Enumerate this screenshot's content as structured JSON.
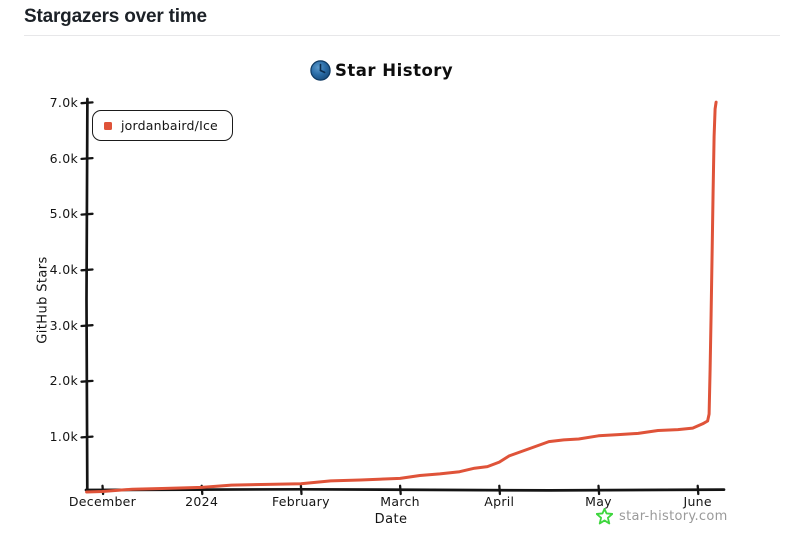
{
  "page": {
    "title": "Stargazers over time"
  },
  "chart": {
    "brand": {
      "title": "Star History",
      "icon": "star-history-logo-icon",
      "icon_color": "#1d5d97"
    },
    "legend": {
      "items": [
        {
          "label": "jordanbaird/Ice",
          "color": "#df5339"
        }
      ]
    },
    "watermark": {
      "text": "star-history.com",
      "icon": "green-star-icon",
      "icon_color": "#3ed63e",
      "text_color": "#9a9a9a"
    }
  },
  "chart_data": {
    "type": "line",
    "title": "Star History",
    "xlabel": "Date",
    "ylabel": "GitHub Stars",
    "grid": false,
    "legend_position": "top-left",
    "line_color": "#df5339",
    "axis_color": "#141414",
    "x_tick_labels": [
      "December",
      "2024",
      "February",
      "March",
      "April",
      "May",
      "June"
    ],
    "x_tick_months": [
      0,
      1,
      2,
      3,
      4,
      5,
      6
    ],
    "y_tick_labels": [
      "7.0k",
      "6.0k",
      "5.0k",
      "4.0k",
      "3.0k",
      "2.0k",
      "1.0k"
    ],
    "y_tick_values": [
      7000,
      6000,
      5000,
      4000,
      3000,
      2000,
      1000
    ],
    "ylim": [
      0,
      7200
    ],
    "xlim_months": [
      -0.16,
      6.27
    ],
    "series": [
      {
        "name": "jordanbaird/Ice",
        "color": "#df5339",
        "points_unit": "[months_since_december_2023, stars]",
        "points": [
          [
            -0.16,
            12
          ],
          [
            0,
            32
          ],
          [
            0.3,
            52
          ],
          [
            0.6,
            75
          ],
          [
            1,
            105
          ],
          [
            1.3,
            125
          ],
          [
            1.6,
            148
          ],
          [
            2,
            172
          ],
          [
            2.3,
            200
          ],
          [
            2.6,
            228
          ],
          [
            3,
            268
          ],
          [
            3.2,
            298
          ],
          [
            3.4,
            338
          ],
          [
            3.6,
            388
          ],
          [
            3.75,
            428
          ],
          [
            3.88,
            470
          ],
          [
            4.0,
            560
          ],
          [
            4.1,
            650
          ],
          [
            4.22,
            740
          ],
          [
            4.35,
            830
          ],
          [
            4.5,
            905
          ],
          [
            4.65,
            950
          ],
          [
            4.8,
            975
          ],
          [
            5.0,
            1010
          ],
          [
            5.2,
            1045
          ],
          [
            5.4,
            1075
          ],
          [
            5.6,
            1105
          ],
          [
            5.8,
            1135
          ],
          [
            5.95,
            1170
          ],
          [
            6.05,
            1225
          ],
          [
            6.1,
            1290
          ],
          [
            6.115,
            1420
          ],
          [
            6.125,
            2200
          ],
          [
            6.135,
            3200
          ],
          [
            6.145,
            4300
          ],
          [
            6.155,
            5400
          ],
          [
            6.165,
            6400
          ],
          [
            6.175,
            6900
          ],
          [
            6.185,
            7000
          ]
        ]
      }
    ]
  }
}
